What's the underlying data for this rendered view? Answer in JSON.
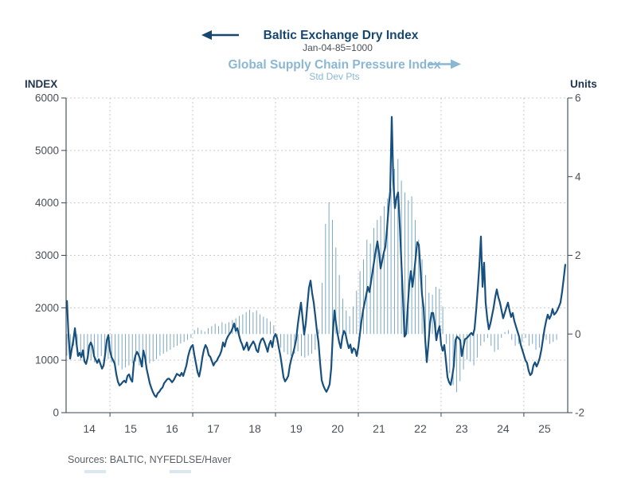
{
  "header": {
    "series1_title": "Baltic Exchange Dry Index",
    "series1_subtitle": "Jan-04-85=1000",
    "series2_title": "Global Supply Chain Pressure Index",
    "series2_subtitle": "Std Dev Pts"
  },
  "axes": {
    "left_unit_label": "INDEX",
    "right_unit_label": "Units"
  },
  "footer": {
    "sources": "Sources:  BALTIC, NYFEDLSE/Haver"
  },
  "colors": {
    "navy": "#17507e",
    "title_navy": "#17466e",
    "light_blue": "#8ab7d2",
    "bar_blue": "#7aa7c2",
    "grid": "#c9c9c9",
    "axis": "#3a4654",
    "tick_text": "#4a4f58",
    "subtitle_text": "#4a5058",
    "dark_label": "#1f3550",
    "source_text": "#5a5f66"
  },
  "chart_data": {
    "type": "line+bar",
    "title": "Baltic Exchange Dry Index vs Global Supply Chain Pressure Index",
    "x_axis": {
      "range": [
        2013.94,
        2026.06
      ],
      "tick_labels": [
        "14",
        "15",
        "16",
        "17",
        "18",
        "19",
        "20",
        "21",
        "22",
        "23",
        "24",
        "25"
      ],
      "tick_positions": [
        2014.5,
        2015.5,
        2016.5,
        2017.5,
        2018.5,
        2019.5,
        2020.5,
        2021.5,
        2022.5,
        2023.5,
        2024.5,
        2025.5
      ],
      "gridline_years": [
        2015,
        2017,
        2019,
        2021,
        2023,
        2025
      ]
    },
    "left_axis": {
      "label": "INDEX",
      "range": [
        0,
        6000
      ],
      "ticks": [
        0,
        1000,
        2000,
        3000,
        4000,
        5000,
        6000
      ]
    },
    "right_axis": {
      "label": "Units",
      "range": [
        -2,
        6
      ],
      "ticks": [
        -2,
        0,
        2,
        4,
        6
      ]
    },
    "grid": "dashed",
    "series": [
      {
        "name": "Baltic Exchange Dry Index",
        "axis": "left",
        "type": "line",
        "start": 2013.962,
        "step": 0.038462,
        "values": [
          2130,
          1450,
          1030,
          1210,
          1380,
          1610,
          1320,
          1080,
          1140,
          1060,
          1190,
          980,
          930,
          1050,
          1280,
          1340,
          1260,
          1080,
          1010,
          950,
          1020,
          930,
          840,
          900,
          1120,
          1380,
          1480,
          1180,
          1060,
          1000,
          930,
          730,
          590,
          520,
          545,
          585,
          610,
          575,
          700,
          730,
          640,
          590,
          960,
          1090,
          1160,
          1100,
          1020,
          880,
          1185,
          1060,
          840,
          700,
          560,
          470,
          390,
          330,
          300,
          370,
          400,
          450,
          480,
          560,
          600,
          640,
          650,
          620,
          580,
          620,
          680,
          740,
          720,
          700,
          760,
          700,
          800,
          900,
          1065,
          1180,
          1257,
          1290,
          1100,
          940,
          775,
          690,
          840,
          1050,
          1200,
          1290,
          1230,
          1100,
          1065,
          985,
          900,
          960,
          985,
          1050,
          1100,
          1180,
          1340,
          1260,
          1380,
          1450,
          1500,
          1540,
          1610,
          1700,
          1560,
          1610,
          1480,
          1370,
          1300,
          1200,
          1260,
          1340,
          1190,
          1260,
          1310,
          1360,
          1300,
          1190,
          1155,
          1310,
          1390,
          1420,
          1350,
          1260,
          1160,
          1300,
          1370,
          1250,
          1440,
          1500,
          1420,
          1250,
          1100,
          900,
          680,
          595,
          640,
          700,
          900,
          1030,
          1130,
          1250,
          1400,
          1680,
          1900,
          2100,
          1800,
          1490,
          1700,
          2050,
          2380,
          2518,
          2280,
          2100,
          1840,
          1560,
          1340,
          950,
          620,
          520,
          450,
          398,
          460,
          540,
          850,
          1500,
          1950,
          1700,
          1500,
          1340,
          1230,
          1450,
          1560,
          1500,
          1350,
          1230,
          1300,
          1140,
          1230,
          1200,
          1080,
          1250,
          1500,
          1750,
          1950,
          2100,
          2250,
          2400,
          2300,
          2500,
          2700,
          2900,
          3100,
          3266,
          3050,
          2750,
          2900,
          3050,
          3160,
          3500,
          3900,
          4220,
          5640,
          4400,
          3900,
          4100,
          4200,
          3600,
          2900,
          2200,
          1450,
          1500,
          2000,
          2450,
          2700,
          2400,
          2650,
          2950,
          3250,
          3200,
          2750,
          2250,
          2000,
          1400,
          965,
          1300,
          1700,
          1900,
          1900,
          1700,
          1380,
          1550,
          1650,
          1300,
          1180,
          1290,
          1000,
          680,
          580,
          530,
          700,
          900,
          1380,
          1450,
          1420,
          1380,
          1080,
          1250,
          1400,
          1420,
          1450,
          1490,
          1520,
          1480,
          1600,
          1950,
          2350,
          2800,
          3360,
          2400,
          2860,
          2100,
          1800,
          1590,
          1700,
          1850,
          2000,
          2200,
          2350,
          2200,
          2100,
          1950,
          1800,
          1900,
          2000,
          2100,
          1950,
          1825,
          1900,
          1750,
          1650,
          1550,
          1450,
          1300,
          1200,
          1100,
          1000,
          950,
          800,
          715,
          750,
          900,
          960,
          880,
          950,
          1050,
          1200,
          1400,
          1600,
          1750,
          1870,
          1790,
          1850,
          1975,
          1870,
          1900,
          1950,
          2020,
          2100,
          2300,
          2550,
          2820
        ]
      },
      {
        "name": "Global Supply Chain Pressure Index",
        "axis": "right",
        "type": "bar",
        "start": 2013.958,
        "step": 0.083333,
        "values": [
          -0.55,
          -0.62,
          -0.3,
          -0.55,
          -0.68,
          -0.72,
          -0.6,
          -0.66,
          -0.72,
          -0.6,
          -0.56,
          -0.68,
          -0.64,
          -0.72,
          -0.76,
          -0.8,
          -0.9,
          -0.85,
          -0.8,
          -0.74,
          -0.7,
          -0.8,
          -0.85,
          -0.8,
          -0.75,
          -0.7,
          -0.64,
          -0.55,
          -0.5,
          -0.45,
          -0.4,
          -0.34,
          -0.3,
          -0.24,
          -0.2,
          -0.15,
          -0.1,
          0.1,
          0.16,
          0.1,
          0.06,
          0.15,
          0.2,
          0.26,
          0.2,
          0.3,
          0.26,
          0.3,
          0.35,
          0.4,
          0.46,
          0.5,
          0.56,
          0.62,
          0.55,
          0.6,
          0.5,
          0.44,
          0.4,
          0.32,
          0.22,
          -0.2,
          -0.35,
          -0.46,
          -0.52,
          -0.56,
          -0.5,
          -0.44,
          -0.56,
          -0.6,
          -0.55,
          -0.5,
          -0.4,
          0.12,
          1.3,
          2.8,
          3.35,
          2.9,
          2.2,
          1.5,
          0.9,
          0.6,
          0.45,
          0.7,
          1.1,
          1.6,
          1.9,
          2.4,
          2.3,
          2.7,
          2.9,
          3.0,
          3.25,
          3.45,
          3.7,
          4.2,
          4.45,
          3.9,
          3.6,
          3.4,
          3.5,
          2.9,
          2.4,
          1.9,
          1.5,
          1.05,
          1.0,
          1.2,
          1.15,
          0.7,
          -0.25,
          -1.0,
          -1.3,
          -1.48,
          -1.2,
          -0.9,
          -0.65,
          -0.7,
          -0.8,
          -0.6,
          -0.3,
          -0.2,
          -0.1,
          -0.3,
          -0.45,
          -0.4,
          -0.1,
          0.05,
          0.1,
          -0.15,
          -0.3,
          -0.25,
          -0.2,
          -0.1,
          -0.3,
          -0.25,
          -0.4,
          -0.35,
          -0.2,
          -0.15,
          -0.25,
          -0.2,
          -0.15
        ]
      }
    ]
  }
}
